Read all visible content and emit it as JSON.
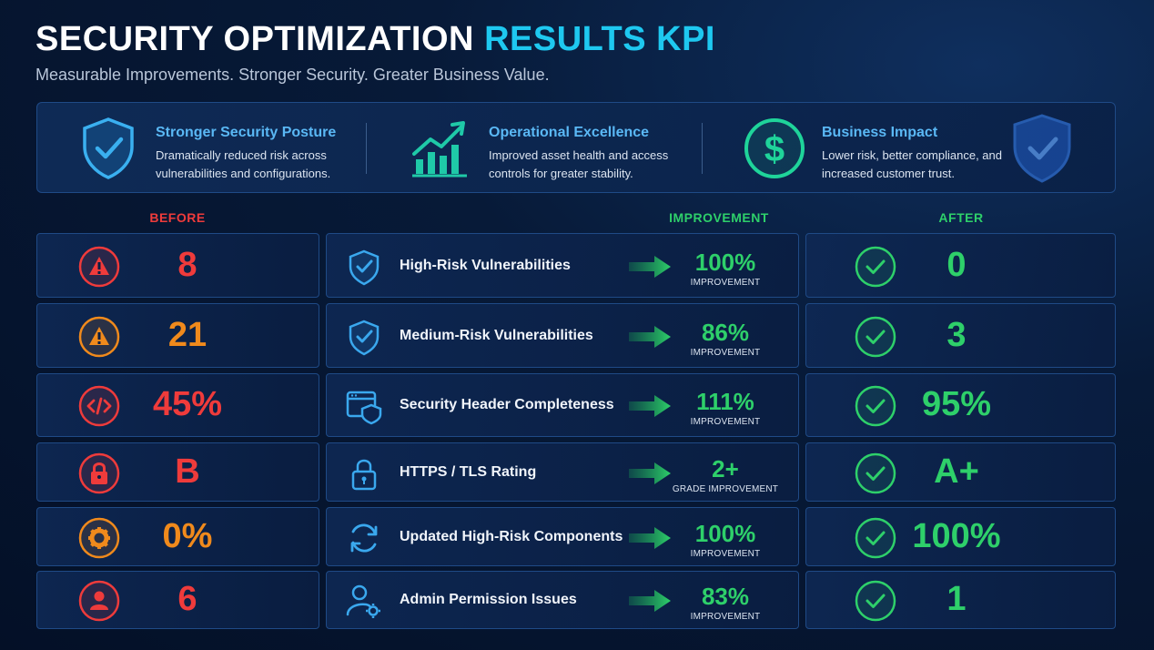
{
  "header": {
    "title_main": "SECURITY OPTIMIZATION ",
    "title_accent": "RESULTS KPI",
    "subtitle": "Measurable Improvements. Stronger Security. Greater Business Value."
  },
  "banner": {
    "items": [
      {
        "title": "Stronger Security Posture",
        "desc": "Dramatically reduced risk across vulnerabilities and configurations.",
        "icon": "shield-check-icon"
      },
      {
        "title": "Operational Excellence",
        "desc": "Improved asset health and access controls for greater stability.",
        "icon": "growth-chart-icon"
      },
      {
        "title": "Business Impact",
        "desc": "Lower risk, better compliance, and increased customer trust.",
        "icon": "dollar-icon"
      }
    ]
  },
  "columns": {
    "before": "BEFORE",
    "improvement": "IMPROVEMENT",
    "after": "AFTER"
  },
  "colors": {
    "before_red": "#ef3b3b",
    "before_orange": "#f08a1c",
    "green": "#2ed06a",
    "accent": "#1ec8f0"
  },
  "rows": [
    {
      "before": "8",
      "before_icon": "warning-icon",
      "before_color": "#ef3b3b",
      "label": "High-Risk Vulnerabilities",
      "icon": "shield-check-icon",
      "improvement": "100%",
      "improvement_label": "IMPROVEMENT",
      "after": "0"
    },
    {
      "before": "21",
      "before_icon": "warning-icon",
      "before_color": "#f08a1c",
      "label": "Medium-Risk Vulnerabilities",
      "icon": "shield-check-icon",
      "improvement": "86%",
      "improvement_label": "IMPROVEMENT",
      "after": "3"
    },
    {
      "before": "45%",
      "before_icon": "code-icon",
      "before_color": "#ef3b3b",
      "label": "Security Header Completeness",
      "icon": "browser-shield-icon",
      "improvement": "111%",
      "improvement_label": "IMPROVEMENT",
      "after": "95%"
    },
    {
      "before": "B",
      "before_icon": "lock-icon",
      "before_color": "#ef3b3b",
      "label": "HTTPS / TLS Rating",
      "icon": "lock-icon",
      "improvement": "2+",
      "improvement_label": "GRADE IMPROVEMENT",
      "after": "A+"
    },
    {
      "before": "0%",
      "before_icon": "gear-icon",
      "before_color": "#f08a1c",
      "label": "Updated High-Risk Components",
      "icon": "refresh-icon",
      "improvement": "100%",
      "improvement_label": "IMPROVEMENT",
      "after": "100%"
    },
    {
      "before": "6",
      "before_icon": "user-icon",
      "before_color": "#ef3b3b",
      "label": "Admin Permission Issues",
      "icon": "user-gear-icon",
      "improvement": "83%",
      "improvement_label": "IMPROVEMENT",
      "after": "1"
    }
  ]
}
